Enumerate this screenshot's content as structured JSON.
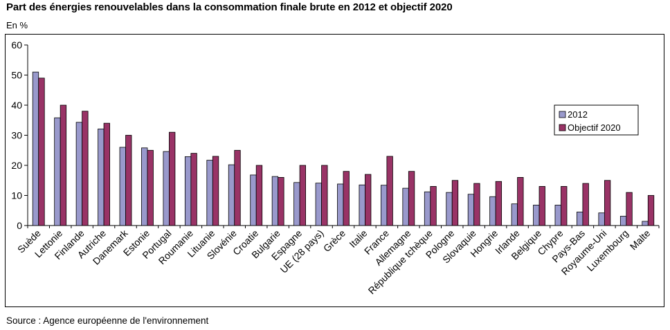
{
  "title": "Part des énergies renouvelables dans la consommation finale brute en 2012 et objectif 2020",
  "unit_label": "En %",
  "source": "Source : Agence européenne de l'environnement",
  "colors": {
    "series_2012": "#9999cc",
    "series_2020": "#993366",
    "axis": "#000000"
  },
  "chart_data": {
    "type": "bar",
    "categories": [
      "Suède",
      "Lettonie",
      "Finlande",
      "Autriche",
      "Danemark",
      "Estonie",
      "Portugal",
      "Roumanie",
      "Lituanie",
      "Slovénie",
      "Croatie",
      "Bulgarie",
      "Espagne",
      "UE (28 pays)",
      "Grèce",
      "Italie",
      "France",
      "Allemagne",
      "République tchèque",
      "Pologne",
      "Slovaquie",
      "Hongrie",
      "Irlande",
      "Belgique",
      "Chypre",
      "Pays-Bas",
      "Royaume-Uni",
      "Luxembourg",
      "Malte"
    ],
    "series": [
      {
        "name": "2012",
        "values": [
          51.0,
          35.8,
          34.3,
          32.1,
          26.0,
          25.8,
          24.6,
          22.9,
          21.7,
          20.2,
          16.8,
          16.3,
          14.3,
          14.1,
          13.8,
          13.5,
          13.4,
          12.4,
          11.2,
          11.0,
          10.4,
          9.6,
          7.2,
          6.8,
          6.8,
          4.5,
          4.2,
          3.1,
          1.4
        ]
      },
      {
        "name": "Objectif 2020",
        "values": [
          49,
          40,
          38,
          34,
          30,
          25,
          31,
          24,
          23,
          25,
          20,
          16,
          20,
          20,
          18,
          17,
          23,
          18,
          13,
          15,
          14,
          14.65,
          16,
          13,
          13,
          14,
          15,
          11,
          10
        ]
      }
    ],
    "yticks": [
      0,
      10,
      20,
      30,
      40,
      50,
      60
    ],
    "ylim": [
      0,
      60
    ],
    "legend_position": "right",
    "grid": false
  }
}
